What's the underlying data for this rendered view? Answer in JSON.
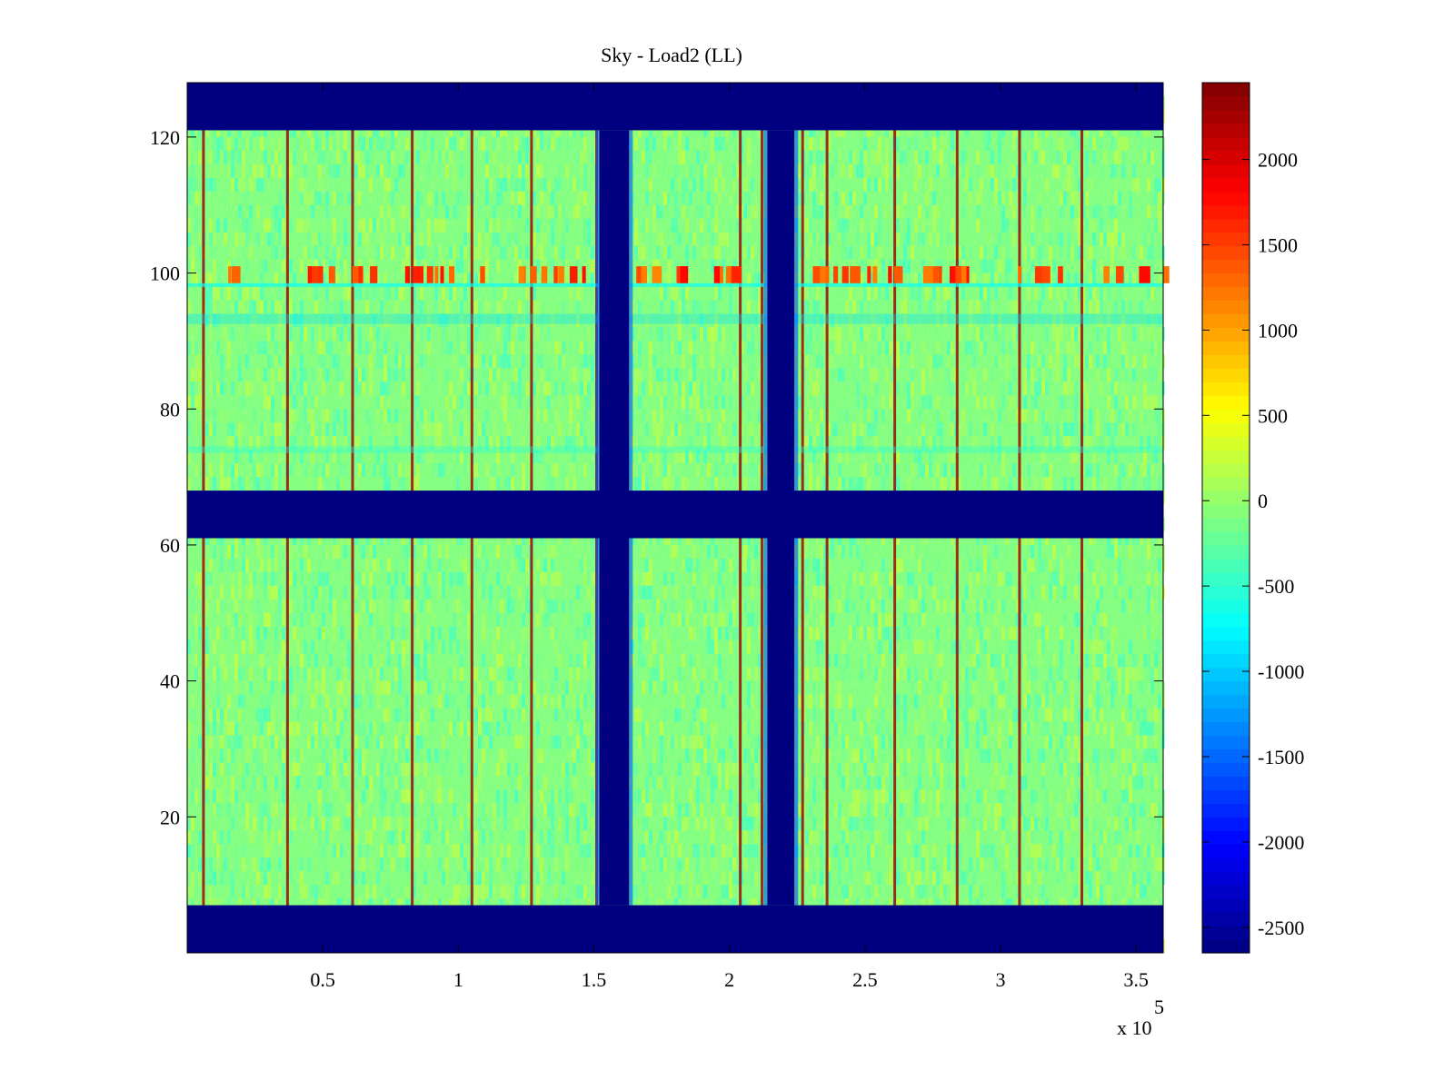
{
  "chart_data": {
    "type": "heatmap",
    "title": "Sky - Load2 (LL)",
    "xlabel": "",
    "ylabel": "",
    "x_exponent_label": "x 10",
    "x_exponent_power": "5",
    "x_range_scaled": [
      0,
      3.6
    ],
    "y_range": [
      0,
      128
    ],
    "x_ticks": [
      {
        "value": 0.5,
        "label": "0.5"
      },
      {
        "value": 1,
        "label": "1"
      },
      {
        "value": 1.5,
        "label": "1.5"
      },
      {
        "value": 2,
        "label": "2"
      },
      {
        "value": 2.5,
        "label": "2.5"
      },
      {
        "value": 3,
        "label": "3"
      },
      {
        "value": 3.5,
        "label": "3.5"
      }
    ],
    "y_ticks": [
      {
        "value": 20,
        "label": "20"
      },
      {
        "value": 40,
        "label": "40"
      },
      {
        "value": 60,
        "label": "60"
      },
      {
        "value": 80,
        "label": "80"
      },
      {
        "value": 100,
        "label": "100"
      },
      {
        "value": 120,
        "label": "120"
      }
    ],
    "colorbar": {
      "colormap": "jet",
      "clim": [
        -2650,
        2450
      ],
      "ticks": [
        {
          "value": 2000,
          "label": "2000"
        },
        {
          "value": 1500,
          "label": "1500"
        },
        {
          "value": 1000,
          "label": "1000"
        },
        {
          "value": 500,
          "label": "500"
        },
        {
          "value": 0,
          "label": "0"
        },
        {
          "value": -500,
          "label": "-500"
        },
        {
          "value": -1000,
          "label": "-1000"
        },
        {
          "value": -1500,
          "label": "-1500"
        },
        {
          "value": -2000,
          "label": "-2000"
        },
        {
          "value": -2500,
          "label": "-2500"
        }
      ]
    },
    "background_value": -2650,
    "field_range": [
      -600,
      400
    ],
    "masked_rows": [
      [
        0,
        7
      ],
      [
        61,
        68
      ],
      [
        121,
        128
      ]
    ],
    "masked_columns": [
      {
        "x": [
          1.52,
          1.63
        ],
        "y": [
          7,
          121
        ]
      },
      {
        "x": [
          2.14,
          2.24
        ],
        "y": [
          7,
          121
        ]
      }
    ],
    "hot_columns": [
      0.06,
      0.37,
      0.61,
      0.83,
      1.05,
      1.27,
      1.51,
      2.04,
      2.12,
      2.27,
      2.36,
      2.61,
      2.84,
      3.07,
      3.3
    ],
    "hot_row_band": {
      "y": [
        98.5,
        101
      ],
      "value": 1800
    },
    "cool_row_bands": [
      {
        "y": [
          92.5,
          94
        ],
        "value": -900
      },
      {
        "y": [
          73.5,
          74.5
        ],
        "value": -600
      }
    ]
  }
}
